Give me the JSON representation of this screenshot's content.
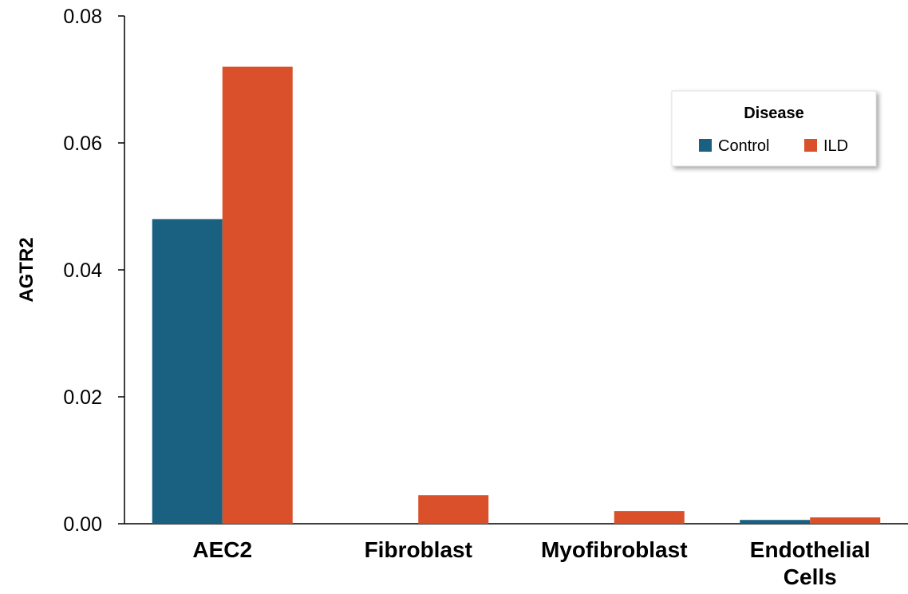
{
  "chart_data": {
    "type": "bar",
    "title": "",
    "xlabel": "",
    "ylabel": "AGTR2",
    "categories": [
      [
        "AEC2"
      ],
      [
        "Fibroblast"
      ],
      [
        "Myofibroblast"
      ],
      [
        "Endothelial",
        "Cells"
      ]
    ],
    "series": [
      {
        "name": "Control",
        "color": "#1a6080",
        "values": [
          0.048,
          0.0,
          0.0,
          0.0006
        ]
      },
      {
        "name": "ILD",
        "color": "#d9502a",
        "values": [
          0.072,
          0.0045,
          0.002,
          0.001
        ]
      }
    ],
    "ylim": [
      0,
      0.08
    ],
    "yticks": [
      "0.00",
      "0.02",
      "0.04",
      "0.06",
      "0.08"
    ],
    "grid": false,
    "legend": {
      "title": "Disease",
      "placement": "top-right"
    }
  }
}
